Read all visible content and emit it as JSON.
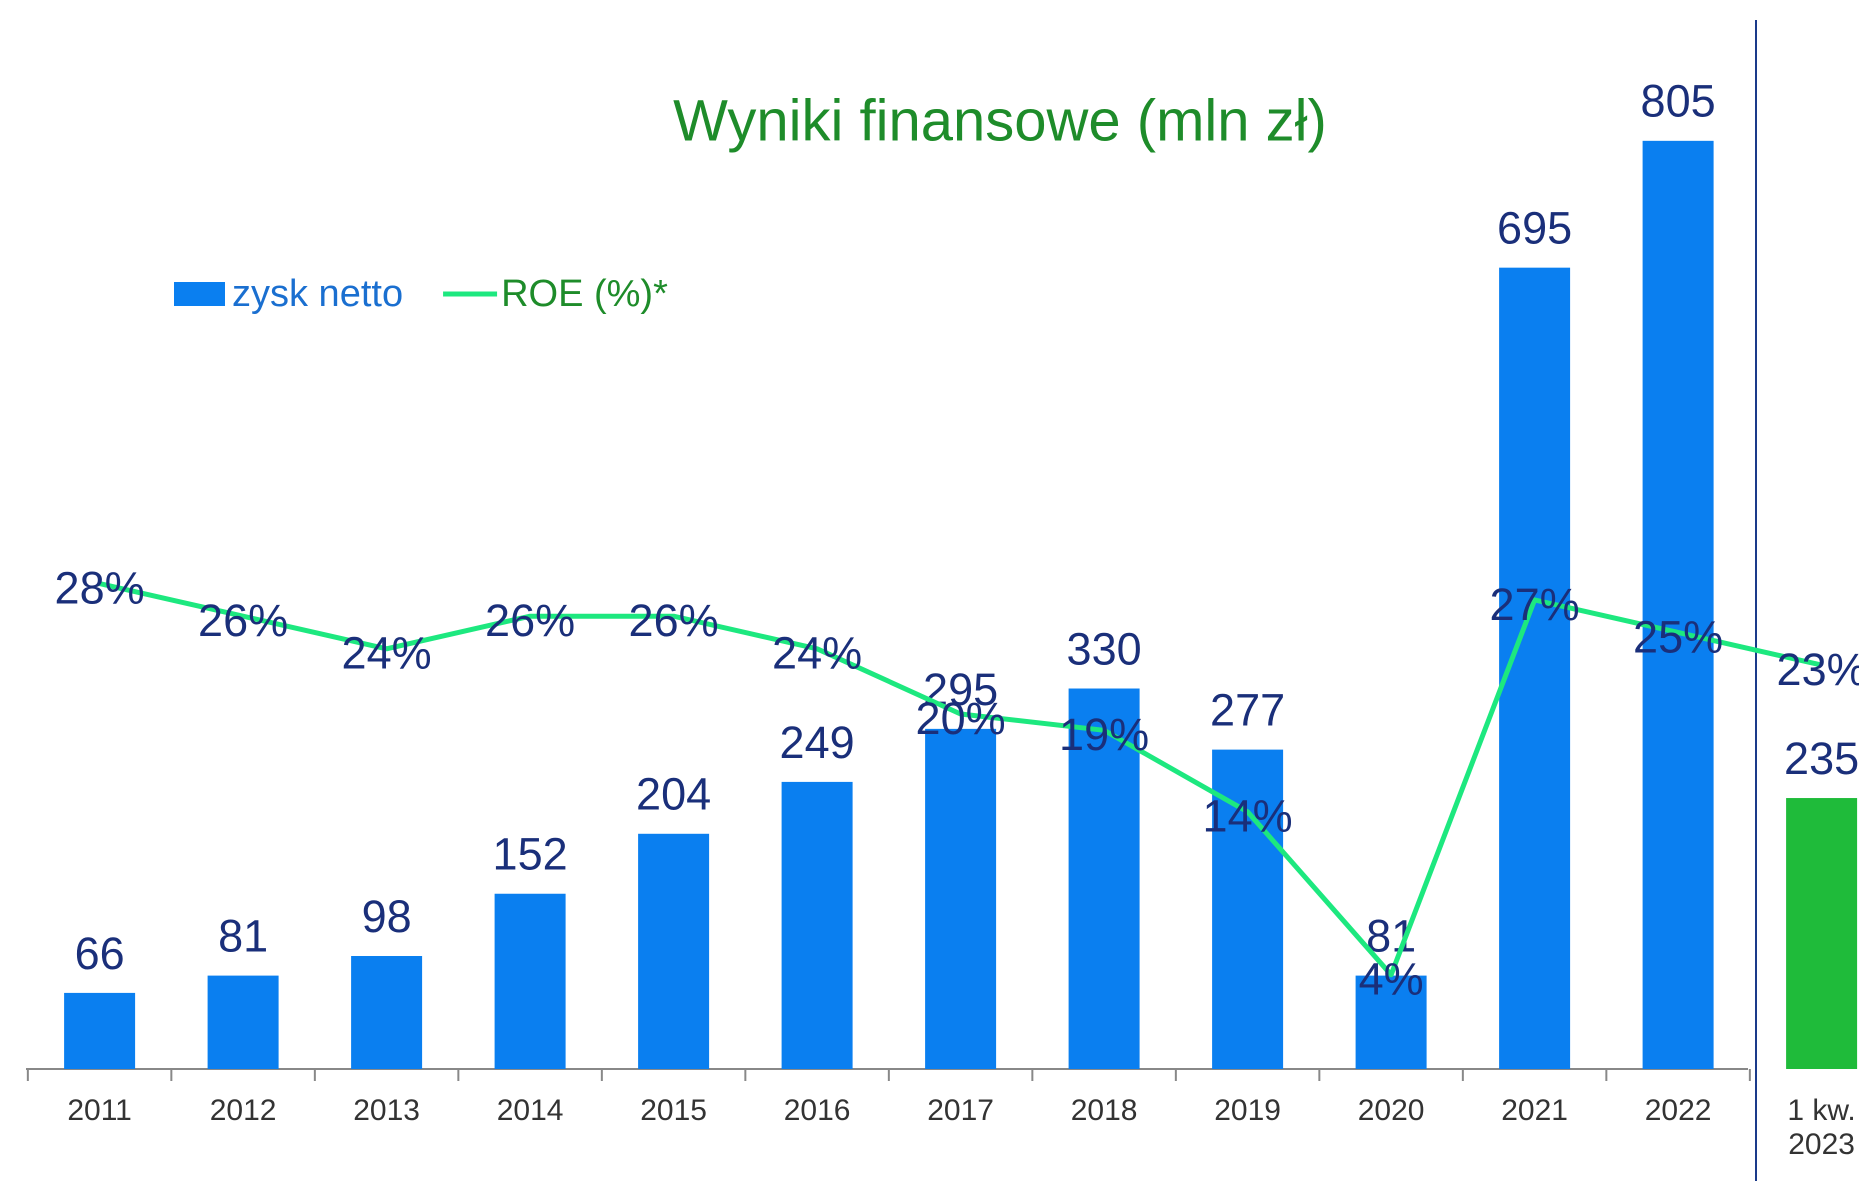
{
  "chart_data": {
    "type": "bar_line",
    "title": "Wyniki finansowe (mln zł)",
    "categories": [
      "2011",
      "2012",
      "2013",
      "2014",
      "2015",
      "2016",
      "2017",
      "2018",
      "2019",
      "2020",
      "2021",
      "2022",
      "1 kw. 2023"
    ],
    "series": [
      {
        "name": "zysk netto",
        "type": "bar",
        "color": "#0a7ff0",
        "colors": [
          "#0a7ff0",
          "#0a7ff0",
          "#0a7ff0",
          "#0a7ff0",
          "#0a7ff0",
          "#0a7ff0",
          "#0a7ff0",
          "#0a7ff0",
          "#0a7ff0",
          "#0a7ff0",
          "#0a7ff0",
          "#0a7ff0",
          "#1fbb3a"
        ],
        "values": [
          66,
          81,
          98,
          152,
          204,
          249,
          295,
          330,
          277,
          81,
          695,
          805,
          235
        ]
      },
      {
        "name": "ROE (%)*",
        "type": "line",
        "color": "#1de87f",
        "values": [
          28,
          26,
          24,
          26,
          26,
          24,
          20,
          19,
          14,
          4,
          27,
          25,
          23
        ],
        "value_labels": [
          "28%",
          "26%",
          "24%",
          "26%",
          "26%",
          "24%",
          "20%",
          "19%",
          "14%",
          "4%",
          "27%",
          "25%",
          "23%"
        ]
      }
    ],
    "legend": "top-left"
  }
}
